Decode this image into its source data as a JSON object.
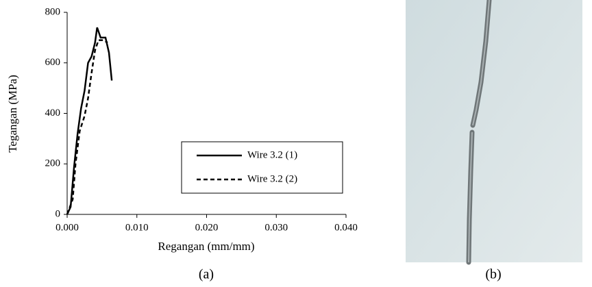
{
  "chart_data": {
    "type": "line",
    "xlabel": "Regangan (mm/mm)",
    "ylabel": "Tegangan (MPa)",
    "xlim": [
      0,
      0.04
    ],
    "ylim": [
      0,
      800
    ],
    "xticks": [
      {
        "value": 0,
        "label": "0.000"
      },
      {
        "value": 0.01,
        "label": "0.010"
      },
      {
        "value": 0.02,
        "label": "0.020"
      },
      {
        "value": 0.03,
        "label": "0.030"
      },
      {
        "value": 0.04,
        "label": "0.040"
      }
    ],
    "yticks": [
      0,
      200,
      400,
      600,
      800
    ],
    "legend": "center-right",
    "series": [
      {
        "name": "Wire 3.2 (1)",
        "color": "#000000",
        "linestyle": "solid",
        "x": [
          0,
          0.0005,
          0.001,
          0.0015,
          0.002,
          0.0025,
          0.003,
          0.0035,
          0.004,
          0.0043,
          0.0048,
          0.0055,
          0.006,
          0.0064
        ],
        "values": [
          0,
          30,
          190,
          320,
          420,
          490,
          600,
          625,
          680,
          740,
          700,
          700,
          640,
          530
        ]
      },
      {
        "name": "Wire 3.2 (2)",
        "color": "#000000",
        "linestyle": "dashed",
        "x": [
          0,
          0.0008,
          0.0012,
          0.0018,
          0.0025,
          0.003,
          0.0035,
          0.004,
          0.0045,
          0.0052,
          0.0058
        ],
        "values": [
          0,
          60,
          200,
          330,
          390,
          460,
          560,
          650,
          690,
          690,
          680
        ]
      }
    ]
  },
  "captions": [
    "(a)",
    "(b)"
  ]
}
